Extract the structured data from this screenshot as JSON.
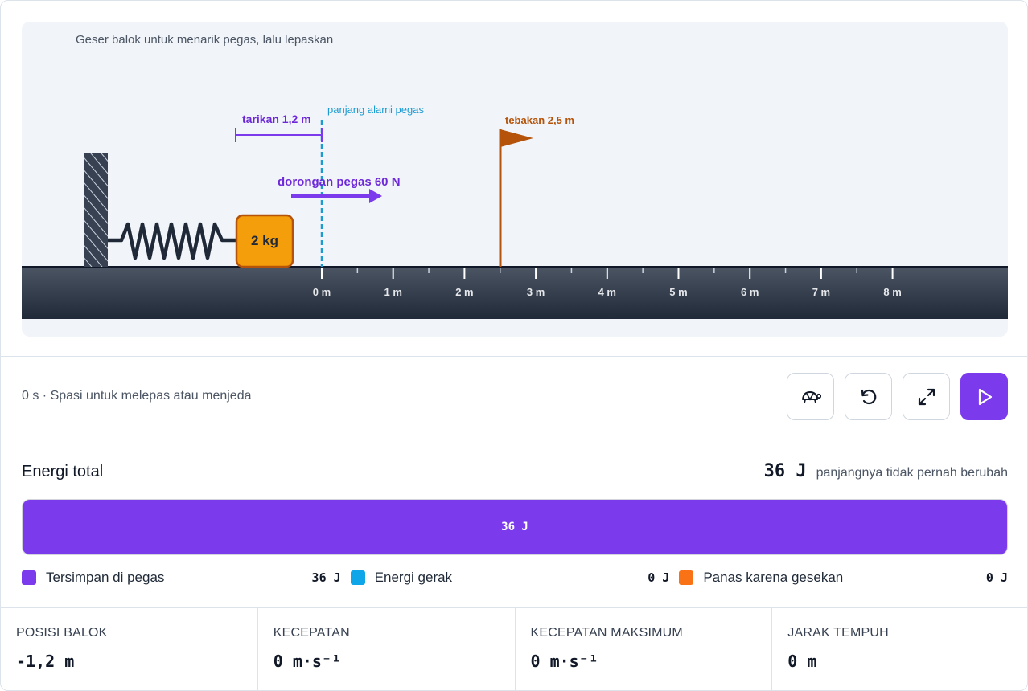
{
  "simulation": {
    "hint": "Geser balok untuk menarik pegas, lalu lepaskan",
    "block_label": "2 kg",
    "stretch_label": "tarikan 1,2 m",
    "natural_length_label": "panjang alami pegas",
    "spring_force_label": "dorongan pegas 60 N",
    "guess_label": "tebakan 2,5 m",
    "ruler_ticks": [
      "0 m",
      "1 m",
      "2 m",
      "3 m",
      "4 m",
      "5 m",
      "6 m",
      "7 m",
      "8 m"
    ]
  },
  "controls": {
    "status": "0 s · Spasi untuk melepas atau menjeda",
    "buttons": [
      {
        "name": "slow-motion-button",
        "icon": "turtle-icon"
      },
      {
        "name": "reset-button",
        "icon": "rotate-ccw-icon"
      },
      {
        "name": "fullscreen-button",
        "icon": "expand-icon"
      },
      {
        "name": "play-button",
        "icon": "play-icon"
      }
    ]
  },
  "energy": {
    "title": "Energi total",
    "total_value": "36 J",
    "total_note": "panjangnya tidak pernah berubah",
    "bar_label": "36 J",
    "bar_fraction": 1.0,
    "legend": [
      {
        "label": "Tersimpan di pegas",
        "value": "36 J",
        "color": "#7c3aed"
      },
      {
        "label": "Energi gerak",
        "value": "0 J",
        "color": "#0ea5e9"
      },
      {
        "label": "Panas karena gesekan",
        "value": "0 J",
        "color": "#f97316"
      }
    ]
  },
  "stats": [
    {
      "label": "POSISI BALOK",
      "value": "-1,2 m"
    },
    {
      "label": "KECEPATAN",
      "value": "0 m·s⁻¹"
    },
    {
      "label": "KECEPATAN MAKSIMUM",
      "value": "0 m·s⁻¹"
    },
    {
      "label": "JARAK TEMPUH",
      "value": "0 m"
    }
  ],
  "colors": {
    "accent": "#7c3aed",
    "natural_length": "#1d9bd1",
    "flag": "#b45309",
    "block": "#f59e0b",
    "ground": "#1f2937"
  }
}
